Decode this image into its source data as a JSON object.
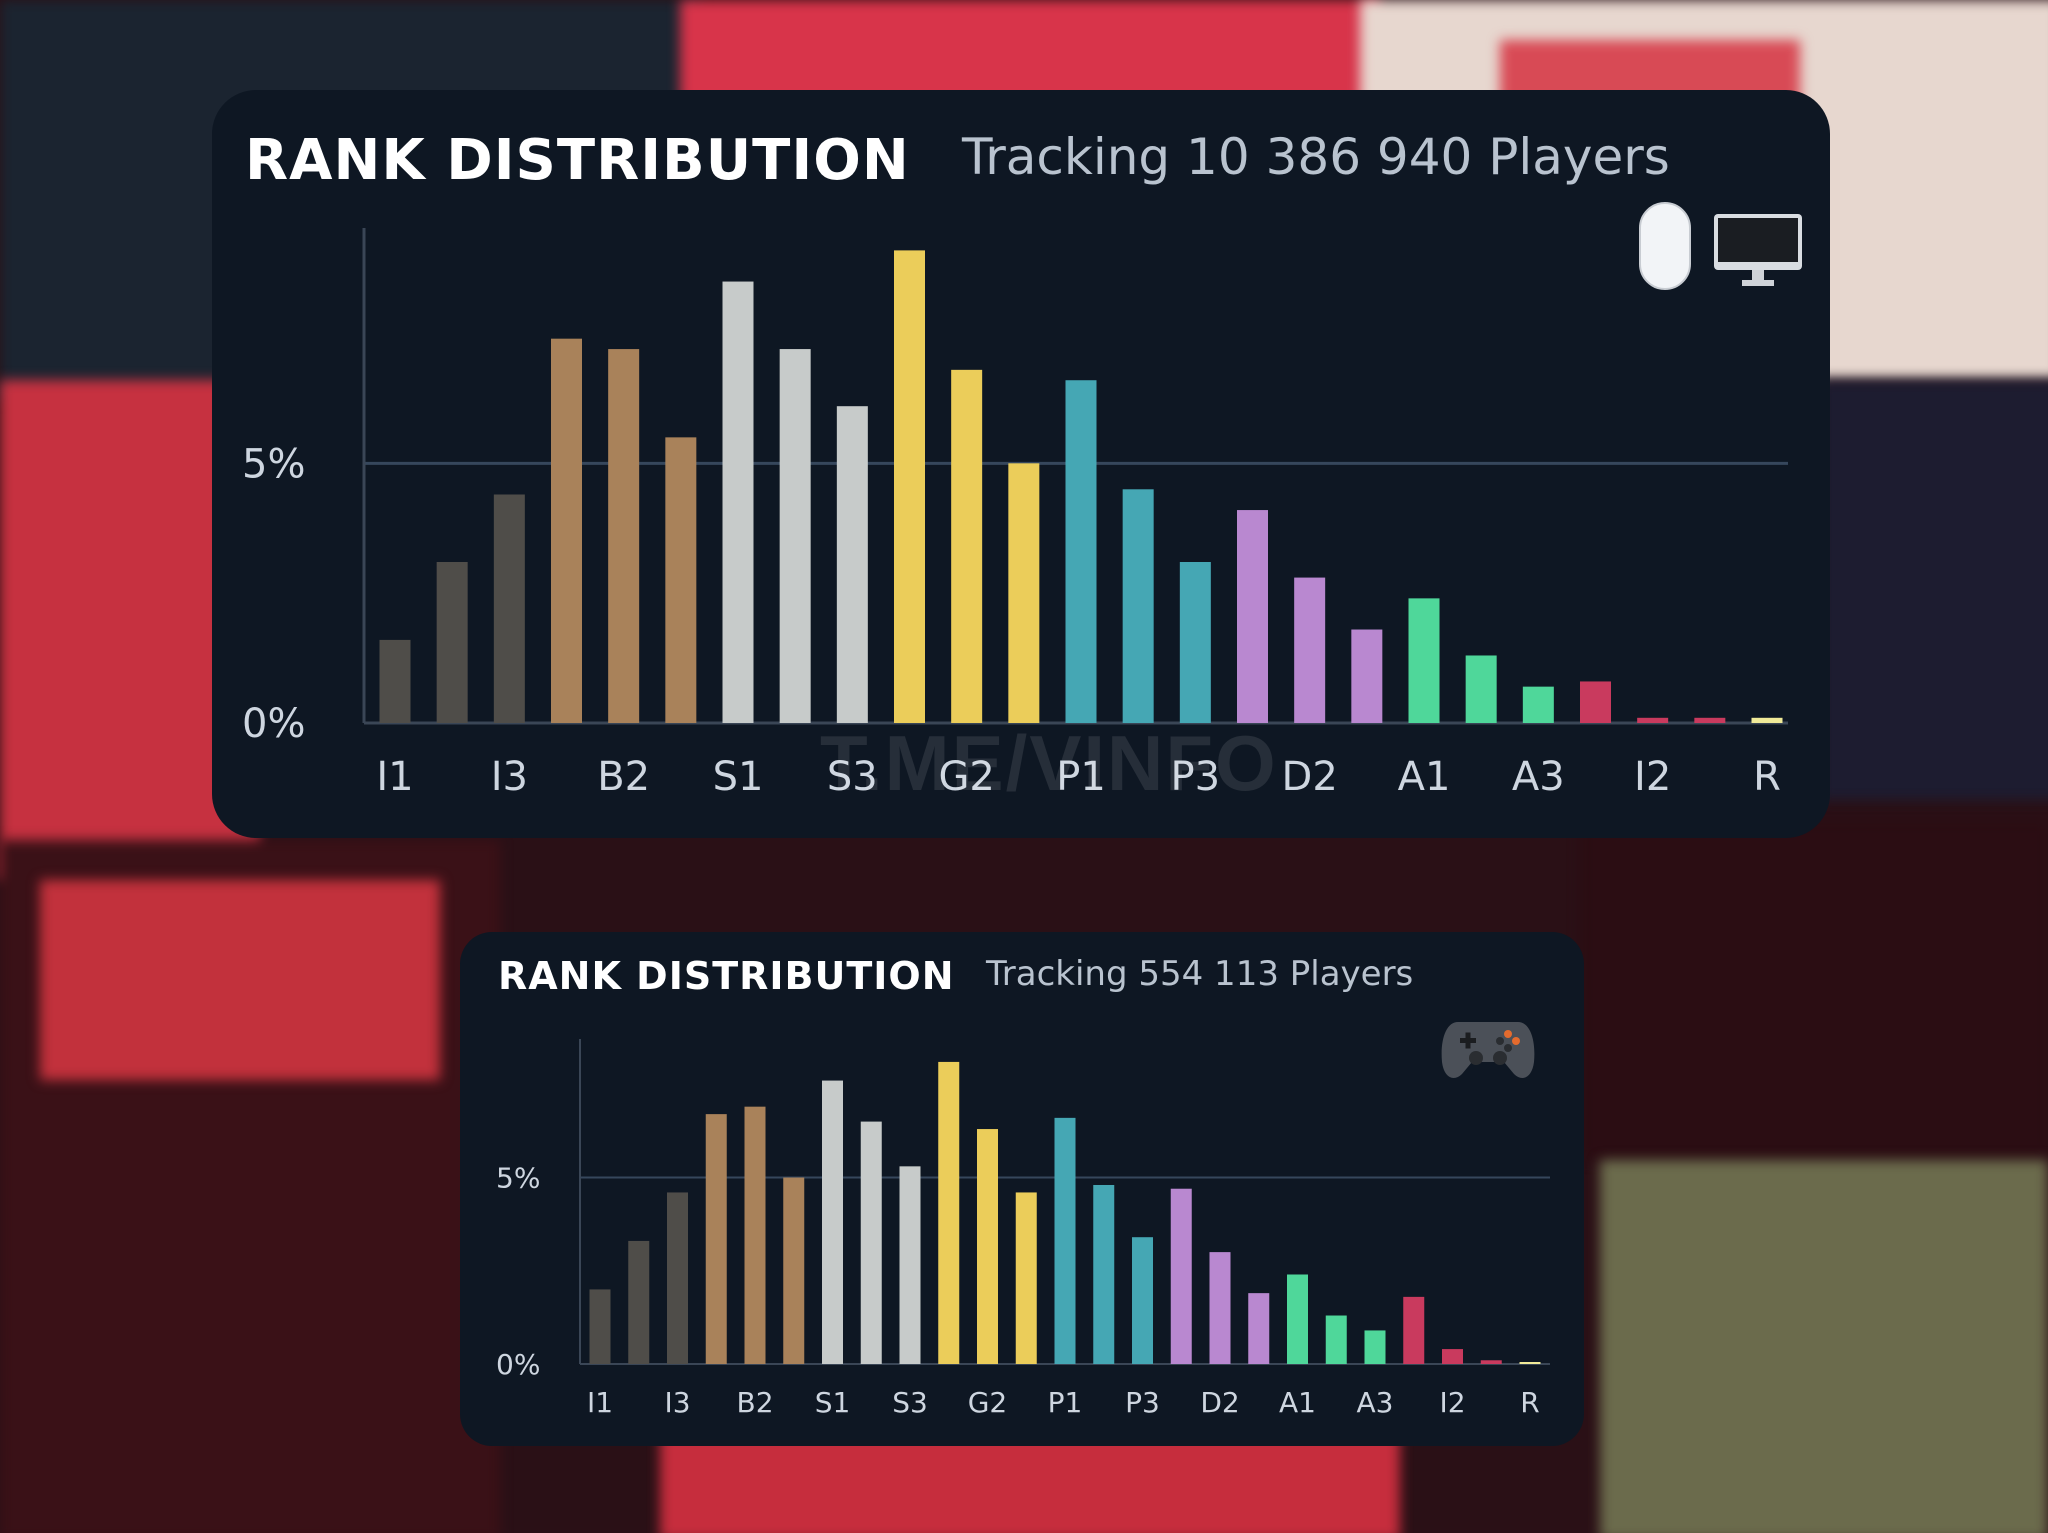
{
  "panels": {
    "pc": {
      "title": "RANK DISTRIBUTION",
      "subtitle": "Tracking 10 386 940 Players",
      "icons": [
        "mouse-icon",
        "monitor-icon"
      ]
    },
    "console": {
      "title": "RANK DISTRIBUTION",
      "subtitle": "Tracking 554 113 Players",
      "icons": [
        "gamepad-icon"
      ]
    }
  },
  "watermark": "T.ME/VINFO",
  "colors": {
    "iron": "#4f4d49",
    "bronze": "#a9825a",
    "silver": "#c7cbca",
    "gold": "#ebcd5a",
    "platinum": "#45a7b4",
    "diamond": "#b988d0",
    "ascendant": "#4fd79a",
    "immortal": "#c93a5e",
    "radiant": "#f0ea98",
    "axis": "#3a4656",
    "gridline": "#36475c",
    "tick_text": "#ced6e0"
  },
  "chart_data": [
    {
      "type": "bar",
      "tick_labels": [
        "I1",
        "I3",
        "B2",
        "S1",
        "S3",
        "G2",
        "P1",
        "P3",
        "D2",
        "A1",
        "A3",
        "I2",
        "R"
      ],
      "ylabels": [
        "5%",
        "0%"
      ],
      "ylim": [
        0,
        9.3
      ],
      "grid": true,
      "series": [
        {
          "values": [
            1.6,
            3.1,
            4.4,
            7.4,
            7.2,
            5.5,
            8.5,
            7.2,
            6.1,
            9.1,
            6.8,
            5.0,
            6.6,
            4.5,
            3.1,
            4.1,
            2.8,
            1.8,
            2.4,
            1.3,
            0.7,
            0.8,
            0.1,
            0.1,
            0.1
          ],
          "color_groups": [
            "iron",
            "iron",
            "iron",
            "bronze",
            "bronze",
            "bronze",
            "silver",
            "silver",
            "silver",
            "gold",
            "gold",
            "gold",
            "platinum",
            "platinum",
            "platinum",
            "diamond",
            "diamond",
            "diamond",
            "ascendant",
            "ascendant",
            "ascendant",
            "immortal",
            "immortal",
            "immortal",
            "radiant"
          ]
        }
      ]
    },
    {
      "type": "bar",
      "tick_labels": [
        "I1",
        "I3",
        "B2",
        "S1",
        "S3",
        "G2",
        "P1",
        "P3",
        "D2",
        "A1",
        "A3",
        "I2",
        "R"
      ],
      "ylabels": [
        "5%",
        "0%"
      ],
      "ylim": [
        0,
        8.5
      ],
      "grid": true,
      "series": [
        {
          "values": [
            2.0,
            3.3,
            4.6,
            6.7,
            6.9,
            5.0,
            7.6,
            6.5,
            5.3,
            8.1,
            6.3,
            4.6,
            6.6,
            4.8,
            3.4,
            4.7,
            3.0,
            1.9,
            2.4,
            1.3,
            0.9,
            1.8,
            0.4,
            0.1,
            0.05
          ],
          "color_groups": [
            "iron",
            "iron",
            "iron",
            "bronze",
            "bronze",
            "bronze",
            "silver",
            "silver",
            "silver",
            "gold",
            "gold",
            "gold",
            "platinum",
            "platinum",
            "platinum",
            "diamond",
            "diamond",
            "diamond",
            "ascendant",
            "ascendant",
            "ascendant",
            "immortal",
            "immortal",
            "immortal",
            "radiant"
          ]
        }
      ]
    }
  ]
}
